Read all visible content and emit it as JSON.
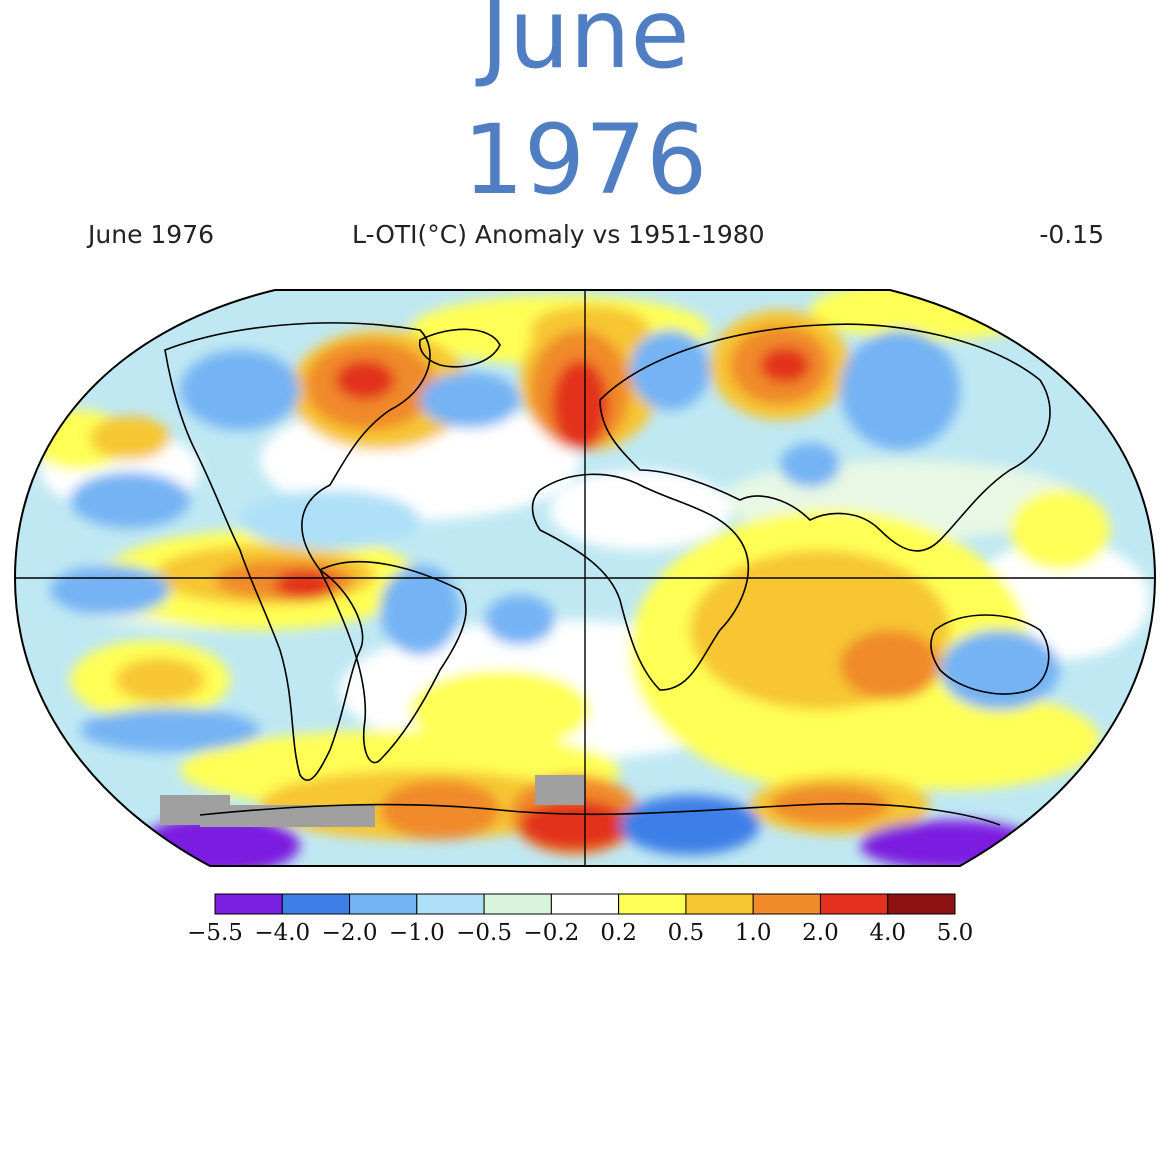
{
  "title": {
    "line1": "June",
    "line2": "1976"
  },
  "header": {
    "left": "June 1976",
    "center": "L-OTI(°C) Anomaly vs 1951-1980",
    "right": "-0.15"
  },
  "legend": {
    "ticks": [
      "−5.5",
      "−4.0",
      "−2.0",
      "−1.0",
      "−0.5",
      "−0.2",
      "0.2",
      "0.5",
      "1.0",
      "2.0",
      "4.0",
      "5.0"
    ],
    "colors": [
      "#7b1fe0",
      "#3e7fe8",
      "#74b3f4",
      "#aee0f8",
      "#d8f5dc",
      "#ffffff",
      "#ffff55",
      "#f7c633",
      "#f08a2a",
      "#e3311d",
      "#8b1210"
    ]
  },
  "map": {
    "colors": {
      "ocean_base": "#bfe8f3",
      "missing": "#a0a0a0",
      "land_outline": "#000000"
    }
  }
}
